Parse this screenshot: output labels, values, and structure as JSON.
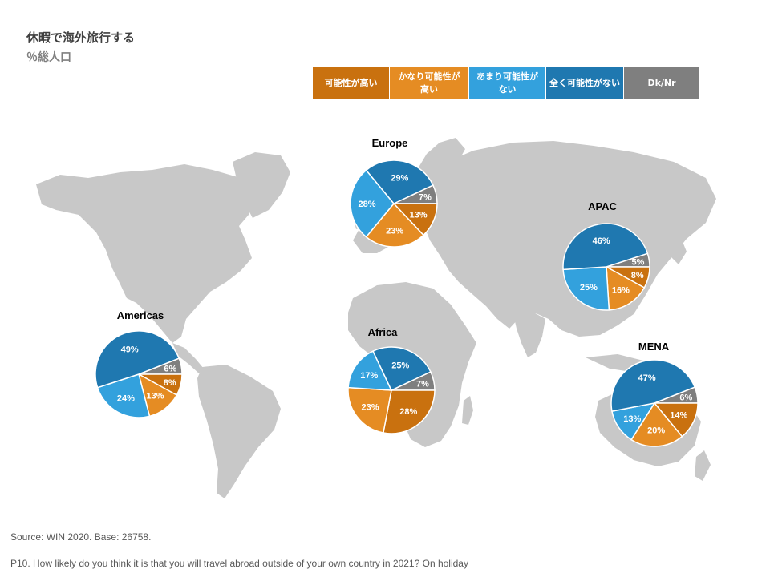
{
  "header": {
    "title": "休暇で海外旅行する",
    "subtitle": "％総人口"
  },
  "legend": [
    {
      "label": "可能性が高い",
      "color": "#c9710f"
    },
    {
      "label": "かなり可能性が\n高い",
      "color": "#e58c23"
    },
    {
      "label": "あまり可能性が\nない",
      "color": "#33a1dd"
    },
    {
      "label": "全く可能性がない",
      "color": "#1f78b0"
    },
    {
      "label": "Dk/Nr",
      "color": "#7f7f7f"
    }
  ],
  "chart_data": {
    "type": "pie",
    "categories": [
      "可能性が高い",
      "かなり可能性が高い",
      "あまり可能性がない",
      "全く可能性がない",
      "Dk/Nr"
    ],
    "pies": [
      {
        "name": "Europe",
        "values": [
          13,
          23,
          28,
          29,
          7
        ]
      },
      {
        "name": "APAC",
        "values": [
          8,
          16,
          25,
          46,
          5
        ]
      },
      {
        "name": "Americas",
        "values": [
          8,
          13,
          24,
          49,
          6
        ]
      },
      {
        "name": "Africa",
        "values": [
          28,
          23,
          17,
          25,
          7
        ]
      },
      {
        "name": "MENA",
        "values": [
          14,
          20,
          13,
          47,
          6
        ]
      }
    ]
  },
  "footer": {
    "source": "Source: WIN 2020.  Base: 26758.",
    "question": "P10. How likely do you think it is that you will travel abroad outside of your own country in 2021?  On holiday"
  }
}
